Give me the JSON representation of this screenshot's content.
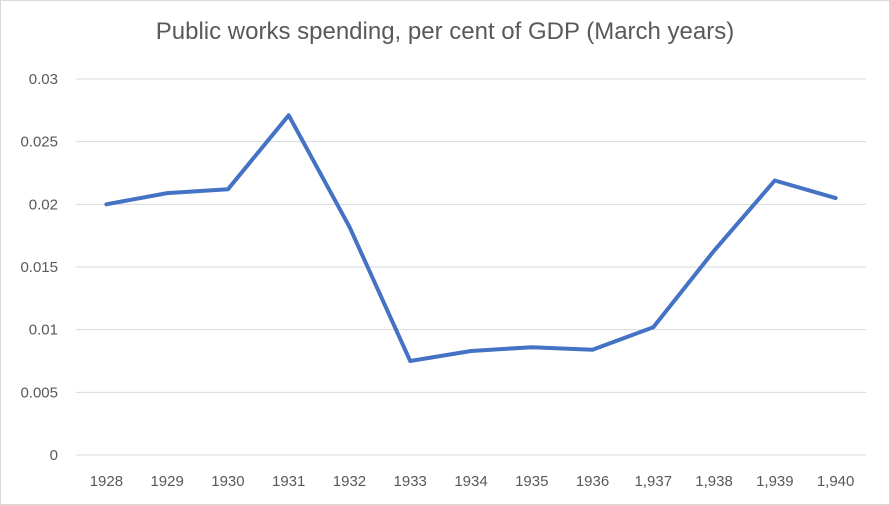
{
  "chart_data": {
    "type": "line",
    "title": "Public works spending, per cent of GDP (March years)",
    "xlabel": "",
    "ylabel": "",
    "categories": [
      "1928",
      "1929",
      "1930",
      "1931",
      "1932",
      "1933",
      "1934",
      "1935",
      "1936",
      "1,937",
      "1,938",
      "1,939",
      "1,940"
    ],
    "series": [
      {
        "values": [
          0.02,
          0.0209,
          0.0212,
          0.0271,
          0.0182,
          0.0075,
          0.0083,
          0.0086,
          0.0084,
          0.0102,
          0.0163,
          0.0219,
          0.0205
        ],
        "color": "#4472c4"
      }
    ],
    "ylim": [
      0,
      0.03
    ],
    "yticks": [
      "0",
      "0.005",
      "0.01",
      "0.015",
      "0.02",
      "0.025",
      "0.03"
    ],
    "ytick_values": [
      0,
      0.005,
      0.01,
      0.015,
      0.02,
      0.025,
      0.03
    ],
    "grid": true,
    "legend": "none",
    "colors": {
      "line": "#4472c4",
      "grid": "#d9d9d9",
      "text": "#595959"
    }
  }
}
